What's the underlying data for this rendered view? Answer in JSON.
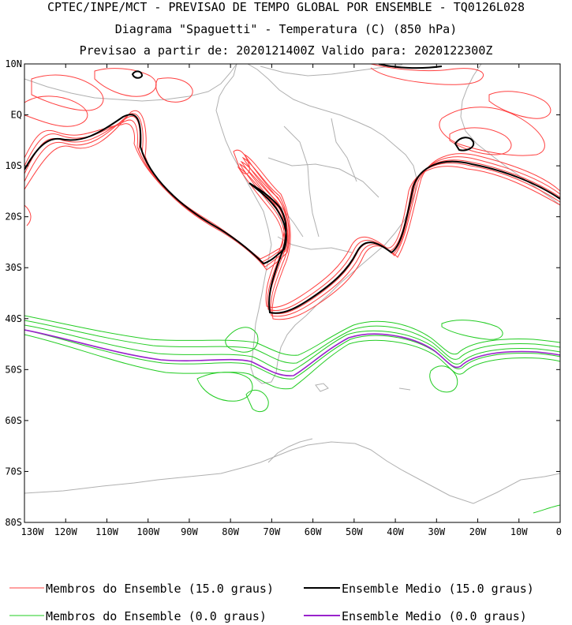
{
  "header": {
    "line1": "CPTEC/INPE/MCT - PREVISAO DE TEMPO GLOBAL POR ENSEMBLE - TQ0126L028",
    "line2": "Diagrama \"Spaguetti\" - Temperatura (C) (850 hPa)",
    "line3": "Previsao a partir de: 2020121400Z  Valido para: 2020122300Z"
  },
  "axes": {
    "lat_labels": [
      "10N",
      "EQ",
      "10S",
      "20S",
      "30S",
      "40S",
      "50S",
      "60S",
      "70S",
      "80S"
    ],
    "lon_labels": [
      "130W",
      "120W",
      "110W",
      "100W",
      "90W",
      "80W",
      "70W",
      "60W",
      "50W",
      "40W",
      "30W",
      "20W",
      "10W",
      "0"
    ]
  },
  "legend": [
    {
      "label": "Membros do Ensemble (15.0 graus)",
      "color": "#ff4040"
    },
    {
      "label": "Ensemble Medio (15.0 graus)",
      "color": "#000000"
    },
    {
      "label": "Membros do Ensemble (0.0 graus)",
      "color": "#22cc22"
    },
    {
      "label": "Ensemble Medio (0.0 graus)",
      "color": "#9922cc"
    }
  ],
  "colors": {
    "coast": "#b0b0b0",
    "frame": "#000000"
  }
}
